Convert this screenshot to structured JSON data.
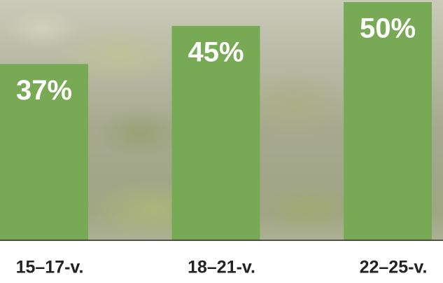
{
  "chart_data": {
    "type": "bar",
    "categories": [
      "15–17-v.",
      "18–21-v.",
      "22–25-v."
    ],
    "values": [
      37,
      45,
      50
    ],
    "value_labels": [
      "37%",
      "45%",
      "50%"
    ],
    "color": "#78aa55"
  }
}
